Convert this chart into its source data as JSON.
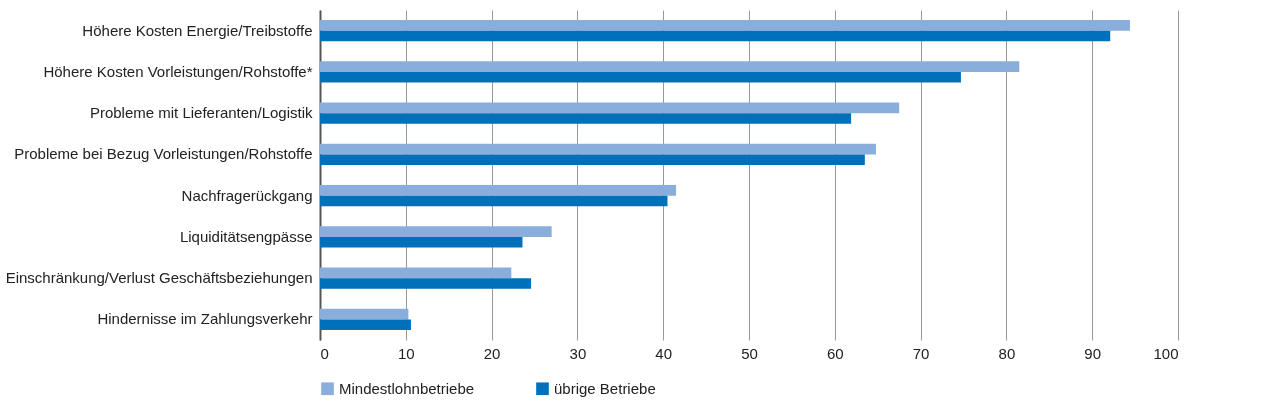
{
  "chart_data": {
    "type": "bar",
    "orientation": "horizontal",
    "categories": [
      "Höhere Kosten Energie/Treibstoffe",
      "Höhere Kosten Vorleistungen/Rohstoffe*",
      "Probleme mit Lieferanten/Logistik",
      "Probleme bei Bezug Vorleistungen/Rohstoffe",
      "Nachfragerückgang",
      "Liquiditätsengpässe",
      "Einschränkung/Verlust Geschäftsbeziehungen",
      "Hindernisse im Zahlungsverkehr"
    ],
    "series": [
      {
        "name": "Mindestlohnbetriebe",
        "color": "#8aaedc",
        "values": [
          94.4,
          81.5,
          67.5,
          64.8,
          41.5,
          27.0,
          22.3,
          10.3
        ]
      },
      {
        "name": "übrige Betriebe",
        "color": "#0070bb",
        "values": [
          92.1,
          74.7,
          61.9,
          63.5,
          40.5,
          23.6,
          24.6,
          10.6
        ]
      }
    ],
    "xlim": [
      0,
      100
    ],
    "xticks": [
      0,
      10,
      20,
      30,
      40,
      50,
      60,
      70,
      80,
      90,
      100
    ],
    "grid": "x",
    "legend": "bottom"
  }
}
